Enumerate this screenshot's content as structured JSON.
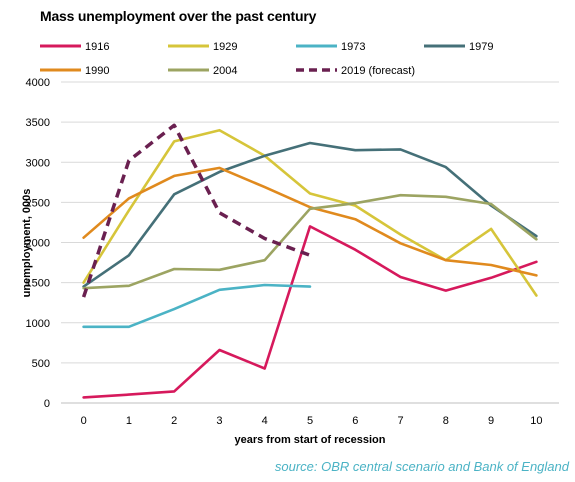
{
  "chart_data": {
    "type": "line",
    "title": "Mass unemployment over the past century",
    "xlabel": "years from start of recession",
    "ylabel": "unemployment, 000s",
    "x": [
      0,
      1,
      2,
      3,
      4,
      5,
      6,
      7,
      8,
      9,
      10
    ],
    "xlim": [
      -0.5,
      10.5
    ],
    "ylim": [
      0,
      4000
    ],
    "yticks": [
      0,
      500,
      1000,
      1500,
      2000,
      2500,
      3000,
      3500,
      4000
    ],
    "grid": "horizontal",
    "legend_position": "top",
    "series": [
      {
        "name": "1916",
        "color": "#d6195c",
        "dashed": false,
        "values": [
          70,
          105,
          145,
          660,
          430,
          2200,
          1910,
          1570,
          1400,
          1560,
          1760
        ]
      },
      {
        "name": "1929",
        "color": "#d6c53a",
        "dashed": false,
        "values": [
          1500,
          2400,
          3260,
          3400,
          3080,
          2610,
          2460,
          2100,
          1780,
          2170,
          1340
        ]
      },
      {
        "name": "1973",
        "color": "#4bb3c5",
        "dashed": false,
        "values": [
          950,
          950,
          1170,
          1410,
          1470,
          1450,
          null,
          null,
          null,
          null,
          null
        ]
      },
      {
        "name": "1979",
        "color": "#457078",
        "dashed": false,
        "values": [
          1450,
          1840,
          2600,
          2880,
          3080,
          3240,
          3150,
          3160,
          2940,
          2460,
          2080
        ]
      },
      {
        "name": "1990",
        "color": "#e08a1e",
        "dashed": false,
        "values": [
          2060,
          2550,
          2830,
          2930,
          2690,
          2440,
          2290,
          1990,
          1780,
          1720,
          1590
        ]
      },
      {
        "name": "2004",
        "color": "#9ca462",
        "dashed": false,
        "values": [
          1430,
          1460,
          1670,
          1660,
          1780,
          2420,
          2490,
          2590,
          2570,
          2480,
          2040
        ]
      },
      {
        "name": "2019 (forecast)",
        "color": "#6a2050",
        "dashed": true,
        "values": [
          1320,
          3020,
          3460,
          2370,
          2050,
          1840,
          null,
          null,
          null,
          null,
          null
        ]
      }
    ]
  },
  "source_note": "source: OBR central scenario and  Bank of England"
}
